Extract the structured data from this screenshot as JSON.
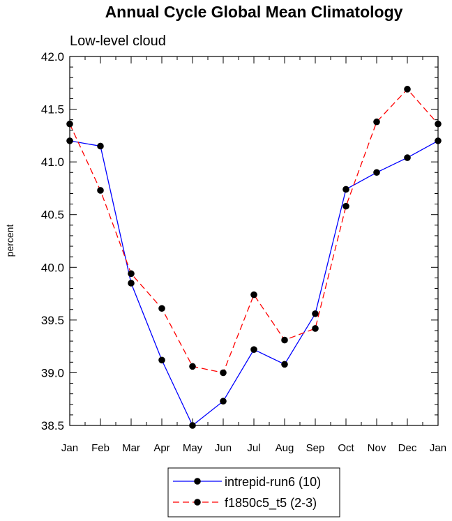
{
  "chart_data": {
    "type": "line",
    "title": "Annual Cycle Global Mean Climatology",
    "subtitle": "Low-level cloud",
    "xlabel": "",
    "ylabel": "percent",
    "ylim": [
      38.5,
      42.0
    ],
    "yticks": [
      "38.5",
      "39.0",
      "39.5",
      "40.0",
      "40.5",
      "41.0",
      "41.5",
      "42.0"
    ],
    "categories": [
      "Jan",
      "Feb",
      "Mar",
      "Apr",
      "May",
      "Jun",
      "Jul",
      "Aug",
      "Sep",
      "Oct",
      "Nov",
      "Dec",
      "Jan"
    ],
    "series": [
      {
        "name": "intrepid-run6 (10)",
        "color": "#0000ff",
        "dash": "solid",
        "values": [
          41.2,
          41.15,
          39.85,
          39.12,
          38.5,
          38.73,
          39.22,
          39.08,
          39.56,
          40.74,
          40.9,
          41.04,
          41.2
        ]
      },
      {
        "name": "f1850c5_t5 (2-3)",
        "color": "#ff0000",
        "dash": "dashed",
        "values": [
          41.36,
          40.73,
          39.94,
          39.61,
          39.06,
          39.0,
          39.74,
          39.31,
          39.42,
          40.58,
          41.38,
          41.69,
          41.36
        ]
      }
    ],
    "legend": "bottom-center"
  }
}
